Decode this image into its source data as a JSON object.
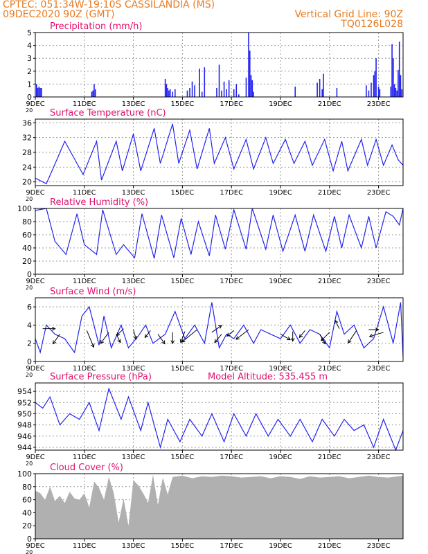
{
  "header": {
    "line1": "CPTEC:   051:34W-19:10S   CASSILANDIA (MS)",
    "line2": "09DEC2020 90Z (GMT)",
    "right1": "Vertical Grid Line: 90Z",
    "right2": "TQ0126L028"
  },
  "colors": {
    "header": "#e87a20",
    "title": "#e0106e",
    "series": "#2222ee",
    "cloud": "#b0b0b0",
    "grid": "#999999"
  },
  "x_ticks": [
    "9DEC",
    "11DEC",
    "13DEC",
    "15DEC",
    "17DEC",
    "19DEC",
    "21DEC",
    "23DEC"
  ],
  "year_fragment": "20",
  "chart_data": [
    {
      "type": "bar",
      "title": "Precipitation (mm/h)",
      "yticks": [
        "0",
        "1",
        "2",
        "3",
        "4",
        "5"
      ],
      "ylim": [
        0,
        5
      ],
      "x": [
        0.05,
        0.1,
        0.15,
        0.2,
        0.25,
        2.3,
        2.35,
        2.4,
        2.45,
        5.3,
        5.35,
        5.4,
        5.45,
        5.5,
        5.6,
        5.7,
        6.2,
        6.3,
        6.4,
        6.5,
        6.7,
        6.8,
        6.9,
        7.4,
        7.5,
        7.6,
        7.7,
        7.8,
        7.9,
        8.1,
        8.2,
        8.3,
        8.6,
        8.7,
        8.75,
        8.8,
        8.85,
        8.9,
        10.6,
        11.5,
        11.6,
        11.7,
        11.75,
        12.3,
        13.5,
        13.6,
        13.7,
        13.8,
        13.85,
        13.9,
        14.0,
        14.05,
        14.5,
        14.55,
        14.6,
        14.65,
        14.7,
        14.75,
        14.8,
        14.85,
        14.9,
        14.95
      ],
      "values": [
        1.0,
        0.7,
        0.8,
        0.7,
        0.7,
        0.4,
        0.5,
        1.0,
        0.6,
        1.4,
        1.0,
        0.7,
        0.5,
        0.6,
        0.4,
        0.6,
        0.5,
        0.7,
        1.2,
        0.9,
        2.2,
        0.4,
        2.3,
        0.7,
        2.5,
        0.5,
        1.2,
        0.6,
        1.3,
        0.6,
        1.0,
        0.2,
        1.5,
        5.0,
        3.6,
        1.7,
        1.3,
        0.4,
        0.8,
        1.1,
        1.4,
        0.6,
        1.8,
        0.7,
        0.9,
        0.5,
        1.1,
        1.7,
        2.0,
        3.0,
        0.8,
        0.6,
        0.8,
        4.1,
        3.0,
        1.0,
        0.7,
        0.5,
        2.1,
        4.3,
        1.7,
        0.6
      ]
    },
    {
      "type": "line",
      "title": "Surface Temperature (nC)",
      "yticks": [
        "20",
        "24",
        "28",
        "32",
        "36"
      ],
      "ylim": [
        19,
        37
      ],
      "x": [
        0,
        0.45,
        0.75,
        1.2,
        1.7,
        1.95,
        2.5,
        2.7,
        3.3,
        3.55,
        4.0,
        4.3,
        4.85,
        5.1,
        5.6,
        5.85,
        6.3,
        6.6,
        7.1,
        7.3,
        7.75,
        8.1,
        8.6,
        8.9,
        9.4,
        9.7,
        10.2,
        10.55,
        11.0,
        11.3,
        11.8,
        12.15,
        12.5,
        12.75,
        13.3,
        13.55,
        13.9,
        14.2,
        14.55,
        14.8,
        15.0
      ],
      "values": [
        21,
        19.5,
        24,
        31,
        25,
        22,
        31,
        20.5,
        31,
        23,
        33,
        23,
        34.5,
        25,
        35.7,
        25,
        34,
        23.5,
        34.5,
        25,
        32,
        23.5,
        31.5,
        23.5,
        32,
        25,
        31.5,
        25,
        31,
        24.5,
        31.5,
        23,
        31,
        23,
        31.5,
        24.5,
        31.5,
        24.5,
        30,
        26,
        24.5
      ]
    },
    {
      "type": "line",
      "title": "Relative Humidity (%)",
      "yticks": [
        "0",
        "20",
        "40",
        "60",
        "80",
        "100"
      ],
      "ylim": [
        0,
        100
      ],
      "x": [
        0,
        0.45,
        0.8,
        1.25,
        1.7,
        2.0,
        2.5,
        2.75,
        3.3,
        3.6,
        4.05,
        4.35,
        4.85,
        5.15,
        5.65,
        5.95,
        6.35,
        6.65,
        7.1,
        7.35,
        7.75,
        8.1,
        8.6,
        8.85,
        9.4,
        9.7,
        10.1,
        10.6,
        11.0,
        11.35,
        11.85,
        12.2,
        12.5,
        12.8,
        13.3,
        13.6,
        13.9,
        14.3,
        14.6,
        14.85,
        15.0
      ],
      "values": [
        97,
        100,
        50,
        30,
        92,
        45,
        30,
        98,
        30,
        45,
        25,
        92,
        24,
        90,
        25,
        85,
        30,
        80,
        28,
        90,
        38,
        98,
        38,
        100,
        38,
        90,
        35,
        90,
        35,
        90,
        35,
        88,
        40,
        90,
        40,
        88,
        40,
        95,
        88,
        75,
        100
      ]
    },
    {
      "type": "line",
      "title": "Surface Wind (m/s)",
      "yticks": [
        "0",
        "2",
        "4",
        "6"
      ],
      "ylim": [
        0,
        7
      ],
      "x": [
        0,
        0.2,
        0.45,
        0.8,
        1.2,
        1.6,
        1.9,
        2.2,
        2.6,
        2.8,
        3.1,
        3.5,
        3.8,
        4.2,
        4.5,
        4.8,
        5.3,
        5.7,
        6.1,
        6.5,
        6.9,
        7.2,
        7.5,
        7.8,
        8.1,
        8.5,
        8.9,
        9.2,
        9.6,
        10.0,
        10.4,
        10.8,
        11.2,
        11.6,
        12.0,
        12.3,
        12.6,
        13.0,
        13.4,
        13.8,
        14.2,
        14.6,
        14.9,
        15.0
      ],
      "values": [
        2.5,
        1.0,
        4.0,
        3.0,
        2.5,
        1.0,
        5.0,
        6.0,
        1.8,
        5.0,
        1.5,
        4.0,
        1.5,
        2.8,
        4.0,
        2.0,
        3.0,
        5.5,
        2.5,
        4.0,
        2.0,
        6.5,
        1.5,
        3.0,
        2.5,
        4.0,
        2.0,
        3.5,
        3.0,
        2.5,
        4.0,
        2.0,
        3.5,
        3.0,
        1.5,
        5.5,
        3.0,
        4.0,
        1.5,
        2.5,
        6.0,
        2.0,
        6.5,
        0.5
      ]
    },
    {
      "type": "line",
      "title": "Surface Pressure (hPa)",
      "annotation": "Model Altitude: 535.455 m",
      "yticks": [
        "944",
        "946",
        "948",
        "950",
        "952",
        "954"
      ],
      "ylim": [
        943.5,
        955.5
      ],
      "x": [
        0,
        0.3,
        0.6,
        1.0,
        1.4,
        1.8,
        2.2,
        2.6,
        3.0,
        3.5,
        3.8,
        4.3,
        4.6,
        5.1,
        5.4,
        5.9,
        6.3,
        6.8,
        7.2,
        7.7,
        8.1,
        8.6,
        9.0,
        9.5,
        9.9,
        10.4,
        10.8,
        11.3,
        11.7,
        12.2,
        12.6,
        13.0,
        13.4,
        13.8,
        14.2,
        14.7,
        15.0
      ],
      "values": [
        952,
        951,
        953,
        948,
        950,
        949,
        952,
        947,
        954.5,
        949,
        953,
        947,
        952,
        944,
        949,
        945,
        949,
        946,
        950,
        945,
        950,
        946,
        950,
        946,
        949,
        946,
        949,
        945,
        949,
        946,
        949,
        947,
        948,
        944,
        949,
        943.5,
        947
      ]
    },
    {
      "type": "area",
      "title": "Cloud Cover (%)",
      "yticks": [
        "0",
        "20",
        "40",
        "60",
        "80",
        "100"
      ],
      "ylim": [
        0,
        100
      ],
      "x": [
        0,
        0.2,
        0.4,
        0.6,
        0.8,
        1.0,
        1.2,
        1.4,
        1.6,
        1.8,
        2.0,
        2.2,
        2.4,
        2.6,
        2.8,
        3.0,
        3.2,
        3.4,
        3.6,
        3.8,
        4.0,
        4.2,
        4.4,
        4.6,
        4.8,
        5.0,
        5.2,
        5.4,
        5.6,
        6.0,
        6.4,
        6.8,
        7.2,
        7.6,
        8.0,
        8.4,
        8.8,
        9.2,
        9.6,
        10.0,
        10.4,
        10.8,
        11.2,
        11.6,
        12.0,
        12.4,
        12.8,
        13.2,
        13.6,
        14.0,
        14.4,
        14.8,
        15.0
      ],
      "values": [
        74,
        70,
        60,
        80,
        58,
        66,
        55,
        72,
        62,
        60,
        70,
        48,
        88,
        78,
        60,
        95,
        70,
        25,
        62,
        20,
        90,
        82,
        70,
        55,
        98,
        52,
        94,
        68,
        95,
        97,
        93,
        96,
        95,
        97,
        96,
        94,
        95,
        96,
        93,
        96,
        95,
        92,
        96,
        94,
        95,
        96,
        93,
        95,
        97,
        95,
        94,
        96,
        97
      ]
    }
  ]
}
